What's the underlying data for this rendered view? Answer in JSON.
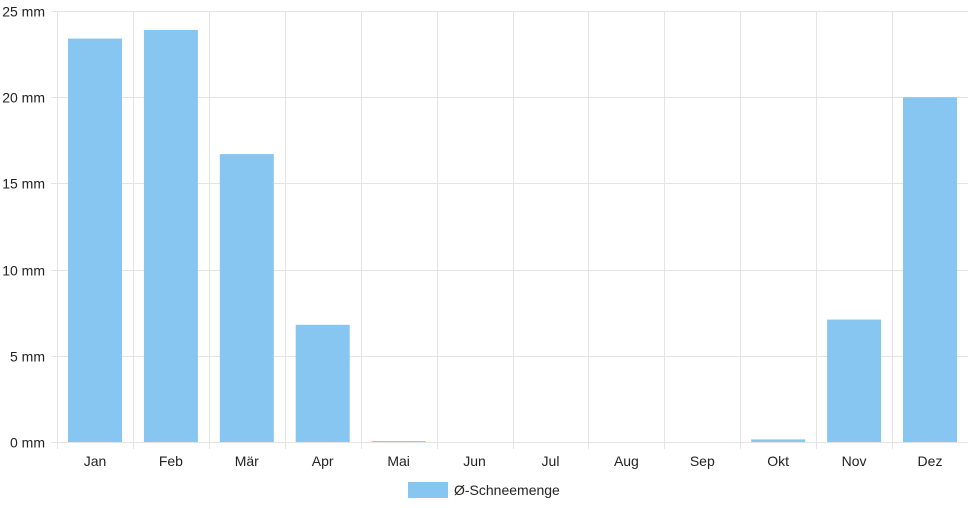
{
  "chart_data": {
    "type": "bar",
    "categories": [
      "Jan",
      "Feb",
      "Mär",
      "Apr",
      "Mai",
      "Jun",
      "Jul",
      "Aug",
      "Sep",
      "Okt",
      "Nov",
      "Dez"
    ],
    "series": [
      {
        "name": "Ø-Schneemenge",
        "values": [
          23.4,
          23.9,
          16.7,
          6.8,
          0.05,
          0,
          0,
          0,
          0,
          0.15,
          7.1,
          20.0
        ],
        "color": "#87c6f1"
      }
    ],
    "y_ticks": [
      "0 mm",
      "5 mm",
      "10 mm",
      "15 mm",
      "20 mm",
      "25 mm"
    ],
    "ylim": [
      0,
      25
    ],
    "grid": true,
    "legend": "bottom-center",
    "colors": {
      "bar": "#87c6f1",
      "grid": "#e4e4e4",
      "text": "#222222"
    }
  }
}
